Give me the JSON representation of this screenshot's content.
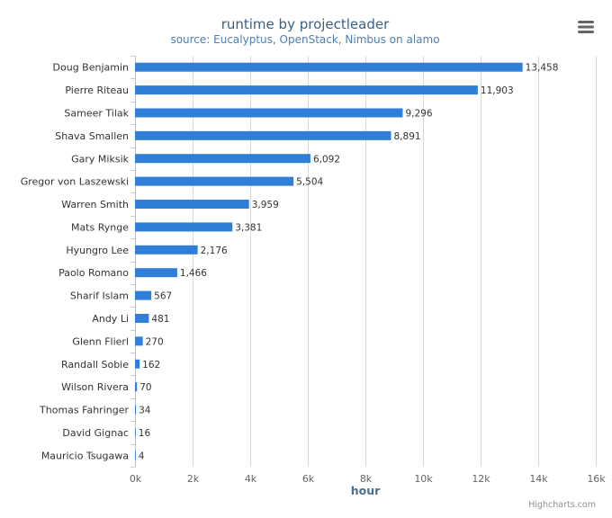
{
  "chart_data": {
    "type": "bar",
    "orientation": "horizontal",
    "title": "runtime by projectleader",
    "subtitle": "source: Eucalyptus, OpenStack, Nimbus on alamo",
    "xlabel": "hour",
    "ylabel": "",
    "xlim": [
      0,
      16000
    ],
    "ticks": [
      0,
      2000,
      4000,
      6000,
      8000,
      10000,
      12000,
      14000,
      16000
    ],
    "tick_labels": [
      "0k",
      "2k",
      "4k",
      "6k",
      "8k",
      "10k",
      "12k",
      "14k",
      "16k"
    ],
    "grid": true,
    "legend": false,
    "bar_color": "#2f7ed8",
    "categories": [
      "Doug Benjamin",
      "Pierre Riteau",
      "Sameer Tilak",
      "Shava Smallen",
      "Gary Miksik",
      "Gregor von Laszewski",
      "Warren Smith",
      "Mats Rynge",
      "Hyungro Lee",
      "Paolo Romano",
      "Sharif Islam",
      "Andy Li",
      "Glenn Flierl",
      "Randall Sobie",
      "Wilson Rivera",
      "Thomas Fahringer",
      "David Gignac",
      "Mauricio Tsugawa"
    ],
    "values": [
      13458,
      11903,
      9296,
      8891,
      6092,
      5504,
      3959,
      3381,
      2176,
      1466,
      567,
      481,
      270,
      162,
      70,
      34,
      16,
      4
    ],
    "value_labels": [
      "13,458",
      "11,903",
      "9,296",
      "8,891",
      "6,092",
      "5,504",
      "3,959",
      "3,381",
      "2,176",
      "1,466",
      "567",
      "481",
      "270",
      "162",
      "70",
      "34",
      "16",
      "4"
    ]
  },
  "credits": "Highcharts.com",
  "menu_icon": "hamburger-menu-icon"
}
